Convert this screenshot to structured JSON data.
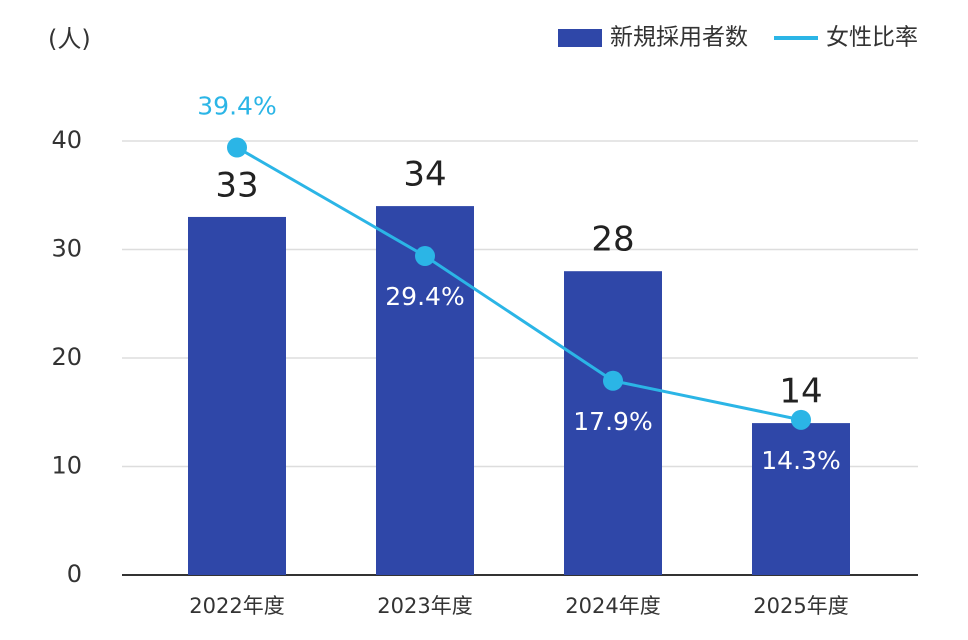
{
  "chart_data": {
    "type": "bar",
    "y_label": "(人)",
    "categories": [
      "2022年度",
      "2023年度",
      "2024年度",
      "2025年度"
    ],
    "series": [
      {
        "name": "新規採用者数",
        "type": "bar",
        "color": "#2f47a8",
        "values": [
          33,
          34,
          28,
          14
        ]
      },
      {
        "name": "女性比率",
        "type": "line",
        "color": "#2bb5e6",
        "values": [
          39.4,
          29.4,
          17.9,
          14.3
        ],
        "value_labels": [
          "39.4%",
          "29.4%",
          "17.9%",
          "14.3%"
        ]
      }
    ],
    "ylim": [
      0,
      40
    ],
    "yticks": [
      0,
      10,
      20,
      30,
      40
    ],
    "grid": true,
    "legend": "top-right"
  }
}
